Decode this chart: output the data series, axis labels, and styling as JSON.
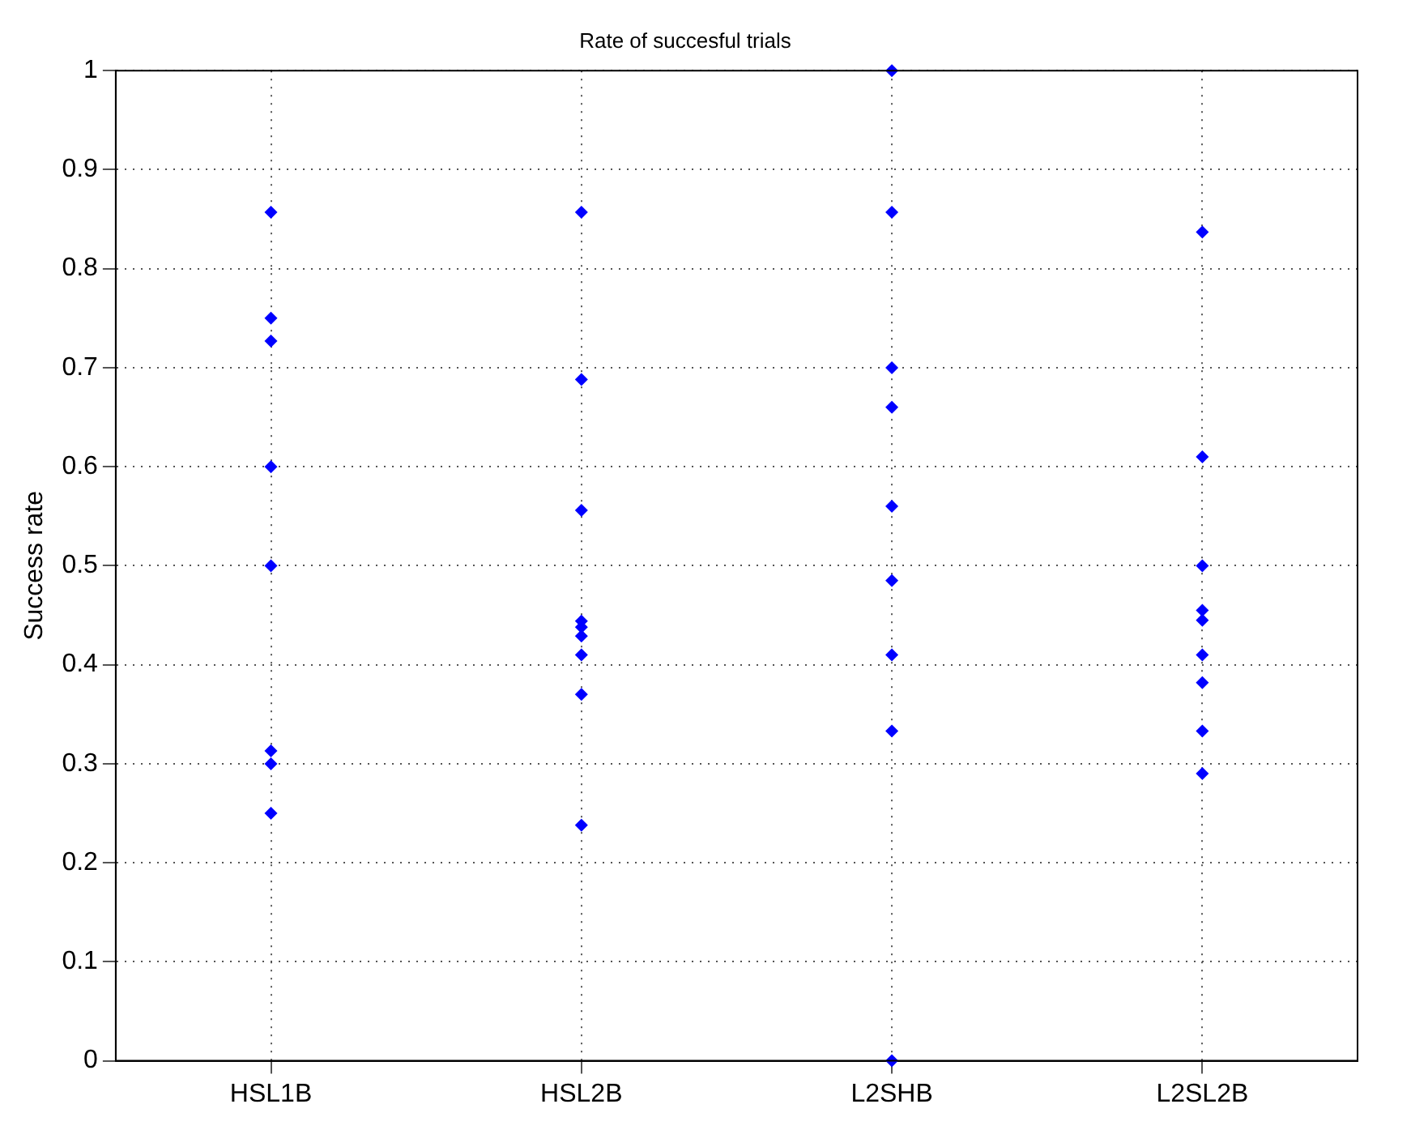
{
  "chart_data": {
    "type": "scatter",
    "title": "Rate of succesful trials",
    "ylabel": "Success rate",
    "categories": [
      "HSL1B",
      "HSL2B",
      "L2SHB",
      "L2SL2B"
    ],
    "series": [
      {
        "color": "#0000ff",
        "x": [
          "HSL1B",
          "HSL1B",
          "HSL1B",
          "HSL1B",
          "HSL1B",
          "HSL1B",
          "HSL1B",
          "HSL1B",
          "HSL2B",
          "HSL2B",
          "HSL2B",
          "HSL2B",
          "HSL2B",
          "HSL2B",
          "HSL2B",
          "HSL2B",
          "HSL2B",
          "L2SHB",
          "L2SHB",
          "L2SHB",
          "L2SHB",
          "L2SHB",
          "L2SHB",
          "L2SHB",
          "L2SHB",
          "L2SHB",
          "L2SL2B",
          "L2SL2B",
          "L2SL2B",
          "L2SL2B",
          "L2SL2B",
          "L2SL2B",
          "L2SL2B",
          "L2SL2B",
          "L2SL2B"
        ],
        "values": [
          0.857,
          0.75,
          0.727,
          0.6,
          0.5,
          0.313,
          0.3,
          0.25,
          0.857,
          0.688,
          0.556,
          0.444,
          0.438,
          0.429,
          0.41,
          0.37,
          0.238,
          1,
          0.857,
          0.7,
          0.66,
          0.56,
          0.485,
          0.41,
          0.333,
          0,
          0.837,
          0.61,
          0.5,
          0.455,
          0.445,
          0.41,
          0.382,
          0.333,
          0.29
        ]
      }
    ],
    "ylim": [
      0,
      1
    ],
    "yticks": [
      0,
      0.1,
      0.2,
      0.3,
      0.4,
      0.5,
      0.6,
      0.7,
      0.8,
      0.9,
      1
    ],
    "grid": true,
    "marker": "diamond"
  }
}
